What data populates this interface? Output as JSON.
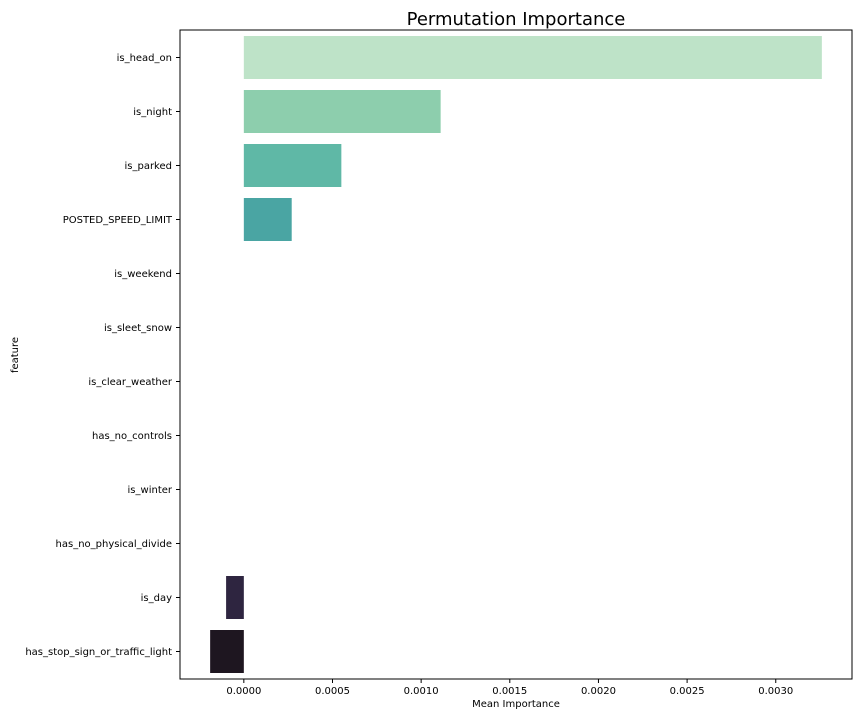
{
  "chart_data": {
    "type": "bar",
    "orientation": "horizontal",
    "title": "Permutation Importance",
    "xlabel": "Mean Importance",
    "ylabel": "feature",
    "categories": [
      "is_head_on",
      "is_night",
      "is_parked",
      "POSTED_SPEED_LIMIT",
      "is_weekend",
      "is_sleet_snow",
      "is_clear_weather",
      "has_no_controls",
      "is_winter",
      "has_no_physical_divide",
      "is_day",
      "has_stop_sign_or_traffic_light"
    ],
    "values": [
      0.00326,
      0.00111,
      0.00055,
      0.00027,
      0,
      0,
      0,
      0,
      0,
      0,
      -0.0001,
      -0.00019
    ],
    "colors": [
      "#bee3c8",
      "#8dcead",
      "#5fb8a6",
      "#4aa5a3",
      "#3e8f9e",
      "#3b7a99",
      "#3d6590",
      "#3f5084",
      "#3e3d72",
      "#3a2d5d",
      "#2e2540",
      "#1e1620"
    ],
    "xlim": [
      -0.00036,
      0.00343
    ],
    "xticks": [
      0.0,
      0.0005,
      0.001,
      0.0015,
      0.002,
      0.0025,
      0.003
    ],
    "xtick_labels": [
      "0.0000",
      "0.0005",
      "0.0010",
      "0.0015",
      "0.0020",
      "0.0025",
      "0.0030"
    ],
    "grid": false,
    "legend": "none"
  }
}
